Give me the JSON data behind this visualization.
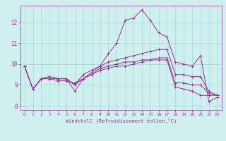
{
  "xlabel": "Windchill (Refroidissement éolien,°C)",
  "ylabel": "",
  "background_color": "#cff0ee",
  "grid_color": "#aadddd",
  "line_color": "#993399",
  "xlim": [
    -0.5,
    23.5
  ],
  "ylim": [
    7.8,
    12.8
  ],
  "yticks": [
    8,
    9,
    10,
    11,
    12
  ],
  "xticks": [
    0,
    1,
    2,
    3,
    4,
    5,
    6,
    7,
    8,
    9,
    10,
    11,
    12,
    13,
    14,
    15,
    16,
    17,
    18,
    19,
    20,
    21,
    22,
    23
  ],
  "lines": [
    {
      "x": [
        0,
        1,
        2,
        3,
        4,
        5,
        6,
        7,
        8,
        9,
        10,
        11,
        12,
        13,
        14,
        15,
        16,
        17,
        18,
        19,
        20,
        21,
        22,
        23
      ],
      "y": [
        9.9,
        8.8,
        9.3,
        9.4,
        9.3,
        9.3,
        8.7,
        9.3,
        9.6,
        9.9,
        10.5,
        11.0,
        12.1,
        12.2,
        12.6,
        12.1,
        11.5,
        11.3,
        10.1,
        10.0,
        9.9,
        10.4,
        8.2,
        8.4
      ]
    },
    {
      "x": [
        0,
        1,
        2,
        3,
        4,
        5,
        6,
        7,
        8,
        9,
        10,
        11,
        12,
        13,
        14,
        15,
        16,
        17,
        18,
        19,
        20,
        21,
        22,
        23
      ],
      "y": [
        9.9,
        8.8,
        9.3,
        9.4,
        9.3,
        9.3,
        9.0,
        9.5,
        9.7,
        9.9,
        10.1,
        10.2,
        10.3,
        10.4,
        10.5,
        10.6,
        10.7,
        10.7,
        9.5,
        9.5,
        9.4,
        9.4,
        8.7,
        8.5
      ]
    },
    {
      "x": [
        0,
        1,
        2,
        3,
        4,
        5,
        6,
        7,
        8,
        9,
        10,
        11,
        12,
        13,
        14,
        15,
        16,
        17,
        18,
        19,
        20,
        21,
        22,
        23
      ],
      "y": [
        9.9,
        8.8,
        9.3,
        9.3,
        9.2,
        9.2,
        9.1,
        9.3,
        9.5,
        9.7,
        9.8,
        9.9,
        9.9,
        10.0,
        10.1,
        10.2,
        10.3,
        10.3,
        9.1,
        9.1,
        9.0,
        9.0,
        8.6,
        8.5
      ]
    },
    {
      "x": [
        0,
        1,
        2,
        3,
        4,
        5,
        6,
        7,
        8,
        9,
        10,
        11,
        12,
        13,
        14,
        15,
        16,
        17,
        18,
        19,
        20,
        21,
        22,
        23
      ],
      "y": [
        9.9,
        8.8,
        9.3,
        9.3,
        9.3,
        9.3,
        9.0,
        9.3,
        9.5,
        9.8,
        9.9,
        10.0,
        10.1,
        10.1,
        10.2,
        10.2,
        10.2,
        10.2,
        8.9,
        8.8,
        8.7,
        8.5,
        8.5,
        8.5
      ]
    }
  ]
}
